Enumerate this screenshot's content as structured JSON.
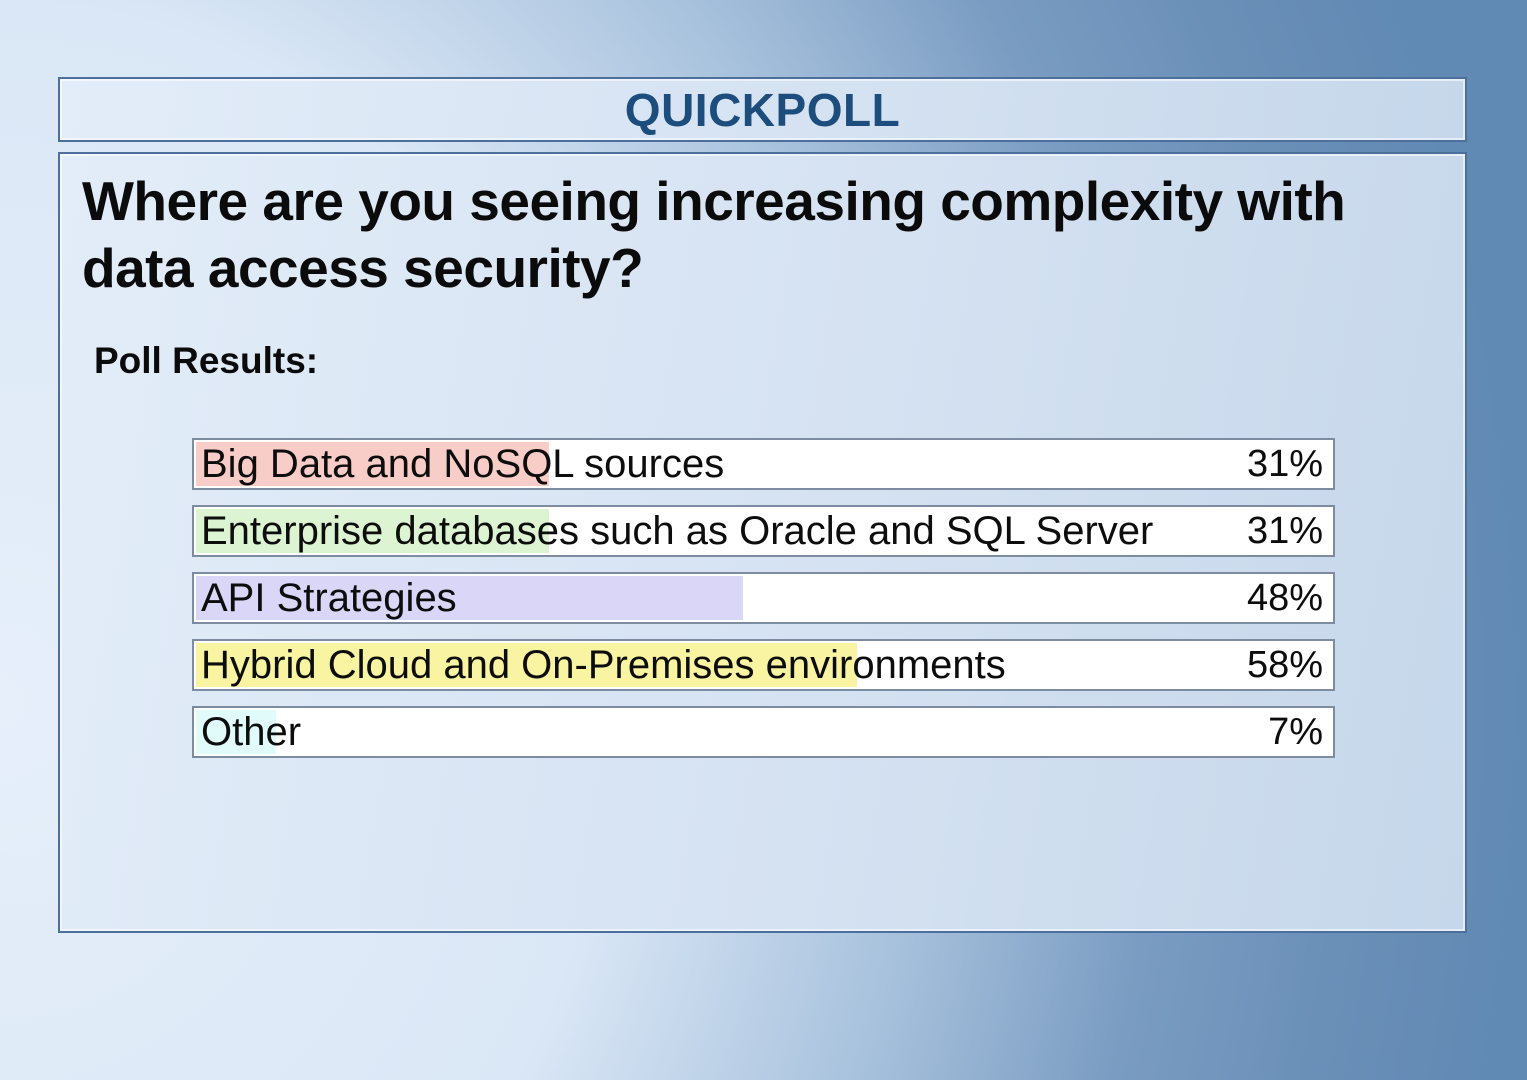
{
  "header": {
    "title": "QUICKPOLL"
  },
  "poll": {
    "question": "Where are you seeing increasing complexity with\ndata access security?",
    "results_label": "Poll Results:",
    "options": [
      {
        "label": "Big Data and NoSQL sources",
        "percent": 31,
        "percent_label": "31%",
        "highlight_color": "#f8ccc7"
      },
      {
        "label": "Enterprise databases such as Oracle and SQL Server",
        "percent": 31,
        "percent_label": "31%",
        "highlight_color": "#dcf4d1"
      },
      {
        "label": "API Strategies",
        "percent": 48,
        "percent_label": "48%",
        "highlight_color": "#d9d6f7"
      },
      {
        "label": "Hybrid Cloud and On-Premises environments",
        "percent": 58,
        "percent_label": "58%",
        "highlight_color": "#f8f4a2"
      },
      {
        "label": "Other",
        "percent": 7,
        "percent_label": "7%",
        "highlight_color": "#e1fafa"
      }
    ]
  },
  "colors": {
    "header_text": "#1c4d7c",
    "panel_border": "#4d6f9b",
    "row_border": "#7d8ca0",
    "background_light": "#dae7f6",
    "background_dark": "#6089b3",
    "text": "#0b0b0b"
  },
  "chart_data": {
    "type": "bar",
    "orientation": "horizontal",
    "title": "Where are you seeing increasing complexity with data access security?",
    "subtitle": "Poll Results:",
    "categories": [
      "Big Data and NoSQL sources",
      "Enterprise databases such as Oracle and SQL Server",
      "API Strategies",
      "Hybrid Cloud and On-Premises environments",
      "Other"
    ],
    "values": [
      31,
      31,
      48,
      58,
      7
    ],
    "unit": "%",
    "value_labels": [
      "31%",
      "31%",
      "48%",
      "58%",
      "7%"
    ],
    "xlim": [
      0,
      100
    ],
    "grid": false,
    "legend": false,
    "bar_colors": [
      "#f8ccc7",
      "#dcf4d1",
      "#d9d6f7",
      "#f8f4a2",
      "#e1fafa"
    ]
  }
}
